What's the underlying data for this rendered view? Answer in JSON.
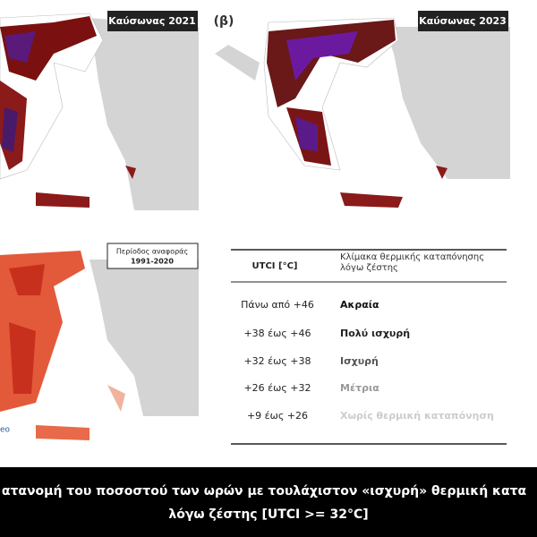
{
  "panels": [
    {
      "label": "Καύσωνας 2021"
    },
    {
      "tag": "(β)",
      "label": "Καύσωνας 2023"
    },
    {
      "label_lines": [
        "Περίοδος αναφοράς",
        "1991-2020"
      ],
      "corner_text": "eo"
    }
  ],
  "table": {
    "header": [
      "UTCI [°C]",
      "Κλίμακα θερμικής καταπόνησης λόγω ζέστης"
    ],
    "rows": [
      [
        "Πάνω από +46",
        "Ακραία"
      ],
      [
        "+38 έως +46",
        "Πολύ ισχυρή"
      ],
      [
        "+32 έως +38",
        "Ισχυρή"
      ],
      [
        "+26 έως +32",
        "Μέτρια"
      ],
      [
        "+9 έως +26",
        "Χωρίς θερμική καταπόνηση"
      ]
    ]
  },
  "caption": [
    "ατανομή του ποσοστού των ωρών με τουλάχιστον «ισχυρή» θερμική κατα",
    "λόγω ζέστης [UTCI >= 32°C]"
  ]
}
